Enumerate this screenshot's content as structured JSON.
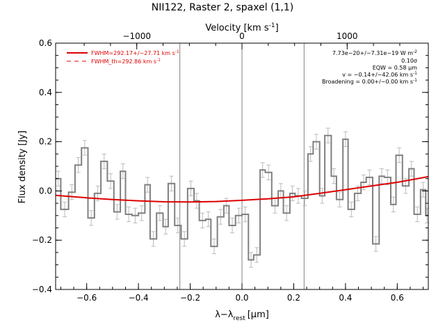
{
  "chart_data": {
    "type": "line",
    "title": "NII122, Raster 2, spaxel (1,1)",
    "xlabel": "λ−λ",
    "xlabel_sub": "rest",
    "xlabel_unit": "[μm]",
    "ylabel": "Flux density [Jy]",
    "top_axis_label": "Velocity [km s",
    "top_axis_label_sup": "-1",
    "top_axis_label_end": "]",
    "xlim": [
      -0.72,
      0.72
    ],
    "ylim": [
      -0.4,
      0.6
    ],
    "x_ticks": [
      {
        "value": -0.6,
        "label": "−0.6"
      },
      {
        "value": -0.4,
        "label": "−0.4"
      },
      {
        "value": -0.2,
        "label": "−0.2"
      },
      {
        "value": 0.0,
        "label": "0.0"
      },
      {
        "value": 0.2,
        "label": "0.2"
      },
      {
        "value": 0.4,
        "label": "0.4"
      },
      {
        "value": 0.6,
        "label": "0.6"
      }
    ],
    "y_ticks": [
      {
        "value": -0.4,
        "label": "−0.4"
      },
      {
        "value": -0.2,
        "label": "−0.2"
      },
      {
        "value": 0.0,
        "label": "0.0"
      },
      {
        "value": 0.2,
        "label": "0.2"
      },
      {
        "value": 0.4,
        "label": "0.4"
      },
      {
        "value": 0.6,
        "label": "0.6"
      }
    ],
    "top_ticks": [
      {
        "value": -1000,
        "label": "−1000",
        "x": -0.4065
      },
      {
        "value": 0,
        "label": "0",
        "x": 0.0
      },
      {
        "value": 1000,
        "label": "1000",
        "x": 0.4065
      }
    ],
    "vertical_lines": [
      -0.24,
      0.0,
      0.24
    ],
    "legend": [
      {
        "label": "FWHM=292.17+/−27.71 km s",
        "sup": "-1",
        "style": "solid",
        "color": "#dd0000"
      },
      {
        "label": "FWHM_th=292.86 km s",
        "sup": "-1",
        "style": "dashed",
        "color": "#dd0000"
      }
    ],
    "legend_position": "top-left",
    "fit_results": [
      {
        "text": "7.73e−20+/−7.31e−19 W m",
        "sup": "-2"
      },
      {
        "text": "0.10σ",
        "sup": ""
      },
      {
        "text": "EQW = 0.58 μm",
        "sup": ""
      },
      {
        "text": "v = −0.14+/−42.06 km s",
        "sup": "-1"
      },
      {
        "text": "Broadening = 0.00+/−0.00 km s",
        "sup": "-1"
      }
    ],
    "fit_results_position": "top-right",
    "series": [
      {
        "style": "step",
        "color": "#808080",
        "x": [
          -0.72,
          -0.7,
          -0.67,
          -0.645,
          -0.62,
          -0.595,
          -0.57,
          -0.545,
          -0.52,
          -0.495,
          -0.47,
          -0.45,
          -0.425,
          -0.4,
          -0.375,
          -0.355,
          -0.33,
          -0.305,
          -0.285,
          -0.26,
          -0.235,
          -0.21,
          -0.185,
          -0.165,
          -0.14,
          -0.12,
          -0.095,
          -0.07,
          -0.05,
          -0.025,
          0.0,
          0.025,
          0.045,
          0.07,
          0.09,
          0.115,
          0.14,
          0.16,
          0.185,
          0.205,
          0.23,
          0.255,
          0.275,
          0.3,
          0.32,
          0.345,
          0.365,
          0.39,
          0.41,
          0.435,
          0.46,
          0.48,
          0.505,
          0.53,
          0.55,
          0.575,
          0.595,
          0.62,
          0.645,
          0.665,
          0.69,
          0.71
        ],
        "y": [
          0.05,
          -0.075,
          -0.005,
          0.105,
          0.175,
          -0.11,
          -0.01,
          0.12,
          0.04,
          -0.085,
          0.08,
          -0.095,
          -0.1,
          -0.09,
          0.025,
          -0.195,
          -0.09,
          -0.145,
          0.03,
          -0.14,
          -0.195,
          0.01,
          -0.04,
          -0.12,
          -0.115,
          -0.225,
          -0.105,
          -0.06,
          -0.14,
          -0.1,
          -0.095,
          -0.28,
          -0.26,
          0.085,
          0.075,
          -0.06,
          0.0,
          -0.09,
          -0.01,
          -0.02,
          -0.03,
          0.15,
          0.2,
          -0.02,
          0.225,
          0.06,
          -0.035,
          0.21,
          -0.075,
          -0.01,
          0.035,
          0.055,
          -0.215,
          0.06,
          0.055,
          -0.055,
          0.145,
          0.02,
          0.09,
          -0.095,
          0.005,
          -0.1
        ],
        "err": 0.03
      },
      {
        "style": "line",
        "color": "#dd0000",
        "x": [
          -0.72,
          -0.6,
          -0.5,
          -0.4,
          -0.3,
          -0.2,
          -0.1,
          0.0,
          0.1,
          0.2,
          0.3,
          0.4,
          0.5,
          0.6,
          0.72
        ],
        "y": [
          -0.018,
          -0.028,
          -0.035,
          -0.04,
          -0.044,
          -0.045,
          -0.043,
          -0.038,
          -0.032,
          -0.024,
          -0.01,
          0.005,
          0.02,
          0.035,
          0.058
        ]
      }
    ]
  }
}
